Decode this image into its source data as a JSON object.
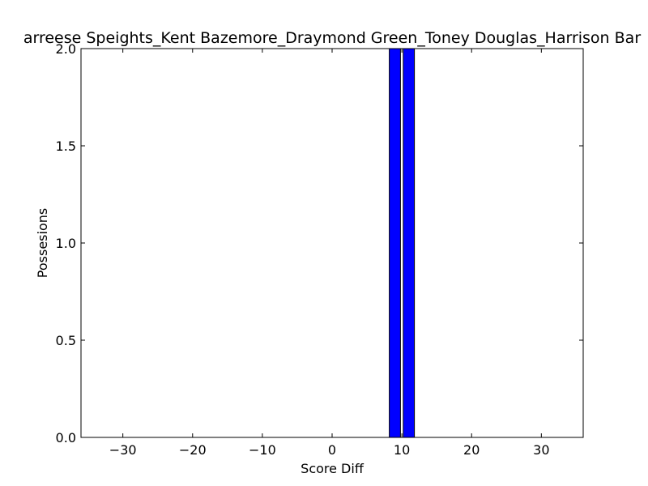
{
  "chart_data": {
    "type": "bar",
    "title": "arreese Speights_Kent Bazemore_Draymond Green_Toney Douglas_Harrison Bar",
    "xlabel": "Score Diff",
    "ylabel": "Possesions",
    "xlim": [
      -36,
      36
    ],
    "ylim": [
      0,
      2.0
    ],
    "xticks": [
      -30,
      -20,
      -10,
      0,
      10,
      20,
      30
    ],
    "xtick_labels": [
      "−30",
      "−20",
      "−10",
      "0",
      "10",
      "20",
      "30"
    ],
    "yticks": [
      0.0,
      0.5,
      1.0,
      1.5,
      2.0
    ],
    "ytick_labels": [
      "0.0",
      "0.5",
      "1.0",
      "1.5",
      "2.0"
    ],
    "bars": [
      {
        "x_start": 8.2,
        "x_end": 9.8,
        "value": 2.0
      },
      {
        "x_start": 10.2,
        "x_end": 11.8,
        "value": 2.0
      }
    ],
    "bar_color": "#0000ff",
    "grid": false
  }
}
